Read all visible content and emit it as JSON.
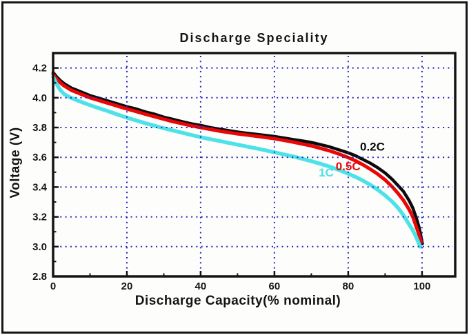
{
  "chart_data": {
    "type": "line",
    "title": "Discharge Speciality",
    "xlabel": "Discharge Capacity(% nominal)",
    "ylabel": "Voltage (V)",
    "xlim": [
      0,
      109
    ],
    "ylim": [
      2.8,
      4.3
    ],
    "axis_color": "#141414",
    "grid": {
      "style": "dotted",
      "color": "#2323bf",
      "x_lines": [
        20,
        40,
        60,
        80,
        100
      ],
      "y_lines": [
        3.0,
        3.2,
        3.4,
        3.6,
        3.8,
        4.0,
        4.2
      ]
    },
    "x_major_ticks": [
      0,
      20,
      40,
      60,
      80,
      100
    ],
    "x_tick_labels": [
      "0",
      "20",
      "40",
      "60",
      "80",
      "100"
    ],
    "x_minor_ticks": [
      10,
      30,
      50,
      70,
      90
    ],
    "y_major_ticks": [
      2.8,
      3.0,
      3.2,
      3.4,
      3.6,
      3.8,
      4.0,
      4.2
    ],
    "y_tick_labels": [
      "2.8",
      "3.0",
      "3.2",
      "3.4",
      "3.6",
      "3.8",
      "4.0",
      "4.2"
    ],
    "y_minor_ticks": [
      2.9,
      3.1,
      3.3,
      3.5,
      3.7,
      3.9,
      4.1
    ],
    "legend_position": "inline-labels",
    "series": [
      {
        "name": "0.2C",
        "color": "#0b0b0b",
        "width": 4.5,
        "label": {
          "text": "0.2C",
          "x": 83.2,
          "v": 3.645
        },
        "points": [
          [
            0,
            4.17
          ],
          [
            0.5,
            4.155
          ],
          [
            1,
            4.14
          ],
          [
            2,
            4.115
          ],
          [
            3,
            4.095
          ],
          [
            4,
            4.08
          ],
          [
            5,
            4.065
          ],
          [
            6,
            4.055
          ],
          [
            8,
            4.035
          ],
          [
            10,
            4.015
          ],
          [
            12,
            4.0
          ],
          [
            14,
            3.985
          ],
          [
            16,
            3.97
          ],
          [
            18,
            3.955
          ],
          [
            20,
            3.94
          ],
          [
            22.5,
            3.925
          ],
          [
            25,
            3.905
          ],
          [
            27.5,
            3.89
          ],
          [
            30,
            3.87
          ],
          [
            32.5,
            3.855
          ],
          [
            35,
            3.84
          ],
          [
            37.5,
            3.825
          ],
          [
            40,
            3.815
          ],
          [
            42.5,
            3.8
          ],
          [
            45,
            3.79
          ],
          [
            47.5,
            3.78
          ],
          [
            50,
            3.77
          ],
          [
            52.5,
            3.762
          ],
          [
            55,
            3.755
          ],
          [
            57.5,
            3.747
          ],
          [
            60,
            3.74
          ],
          [
            62.5,
            3.73
          ],
          [
            65,
            3.72
          ],
          [
            67.5,
            3.71
          ],
          [
            70,
            3.7
          ],
          [
            72.5,
            3.685
          ],
          [
            75,
            3.67
          ],
          [
            77.5,
            3.65
          ],
          [
            80,
            3.63
          ],
          [
            82,
            3.61
          ],
          [
            84,
            3.585
          ],
          [
            86,
            3.56
          ],
          [
            88,
            3.53
          ],
          [
            90,
            3.495
          ],
          [
            92,
            3.45
          ],
          [
            93.5,
            3.41
          ],
          [
            95,
            3.37
          ],
          [
            96.5,
            3.31
          ],
          [
            97.5,
            3.26
          ],
          [
            98.5,
            3.19
          ],
          [
            99.2,
            3.13
          ],
          [
            99.8,
            3.06
          ],
          [
            100.1,
            3.02
          ]
        ]
      },
      {
        "name": "0.5C",
        "color": "#e90707",
        "width": 5,
        "label": {
          "text": "0.5C",
          "x": 76.6,
          "v": 3.514
        },
        "points": [
          [
            0,
            4.16
          ],
          [
            0.5,
            4.14
          ],
          [
            1,
            4.125
          ],
          [
            2,
            4.1
          ],
          [
            3,
            4.08
          ],
          [
            4,
            4.065
          ],
          [
            5,
            4.05
          ],
          [
            6,
            4.04
          ],
          [
            8,
            4.02
          ],
          [
            10,
            4.0
          ],
          [
            12,
            3.985
          ],
          [
            14,
            3.97
          ],
          [
            16,
            3.955
          ],
          [
            18,
            3.94
          ],
          [
            20,
            3.925
          ],
          [
            22.5,
            3.908
          ],
          [
            25,
            3.89
          ],
          [
            27.5,
            3.873
          ],
          [
            30,
            3.856
          ],
          [
            32.5,
            3.84
          ],
          [
            35,
            3.826
          ],
          [
            37.5,
            3.812
          ],
          [
            40,
            3.8
          ],
          [
            42.5,
            3.788
          ],
          [
            45,
            3.777
          ],
          [
            47.5,
            3.767
          ],
          [
            50,
            3.758
          ],
          [
            52.5,
            3.75
          ],
          [
            55,
            3.742
          ],
          [
            57.5,
            3.734
          ],
          [
            60,
            3.725
          ],
          [
            62.5,
            3.714
          ],
          [
            65,
            3.703
          ],
          [
            67.5,
            3.69
          ],
          [
            70,
            3.677
          ],
          [
            72.5,
            3.66
          ],
          [
            75,
            3.643
          ],
          [
            77.5,
            3.622
          ],
          [
            80,
            3.598
          ],
          [
            82,
            3.576
          ],
          [
            84,
            3.55
          ],
          [
            86,
            3.52
          ],
          [
            88,
            3.487
          ],
          [
            90,
            3.448
          ],
          [
            92,
            3.4
          ],
          [
            93.5,
            3.358
          ],
          [
            95,
            3.31
          ],
          [
            96.5,
            3.25
          ],
          [
            97.5,
            3.2
          ],
          [
            98.5,
            3.13
          ],
          [
            99.2,
            3.08
          ],
          [
            99.8,
            3.03
          ]
        ]
      },
      {
        "name": "1C",
        "color": "#4ce2e8",
        "width": 5.5,
        "label": {
          "text": "1C",
          "x": 72.0,
          "v": 3.472
        },
        "points": [
          [
            0,
            4.14
          ],
          [
            0.5,
            4.115
          ],
          [
            1,
            4.09
          ],
          [
            2,
            4.05
          ],
          [
            3,
            4.025
          ],
          [
            4,
            4.01
          ],
          [
            5,
            3.998
          ],
          [
            6,
            3.988
          ],
          [
            8,
            3.968
          ],
          [
            10,
            3.95
          ],
          [
            12,
            3.933
          ],
          [
            14,
            3.917
          ],
          [
            16,
            3.9
          ],
          [
            18,
            3.883
          ],
          [
            20,
            3.866
          ],
          [
            22.5,
            3.847
          ],
          [
            25,
            3.829
          ],
          [
            27.5,
            3.812
          ],
          [
            30,
            3.795
          ],
          [
            32.5,
            3.78
          ],
          [
            35,
            3.765
          ],
          [
            37.5,
            3.75
          ],
          [
            40,
            3.735
          ],
          [
            42.5,
            3.722
          ],
          [
            45,
            3.71
          ],
          [
            47.5,
            3.697
          ],
          [
            50,
            3.685
          ],
          [
            52.5,
            3.672
          ],
          [
            55,
            3.66
          ],
          [
            57.5,
            3.647
          ],
          [
            60,
            3.634
          ],
          [
            62.5,
            3.62
          ],
          [
            65,
            3.606
          ],
          [
            67.5,
            3.59
          ],
          [
            70,
            3.574
          ],
          [
            72.5,
            3.556
          ],
          [
            75,
            3.537
          ],
          [
            77.5,
            3.515
          ],
          [
            80,
            3.49
          ],
          [
            82,
            3.468
          ],
          [
            84,
            3.443
          ],
          [
            86,
            3.415
          ],
          [
            88,
            3.382
          ],
          [
            90,
            3.344
          ],
          [
            92,
            3.3
          ],
          [
            93.5,
            3.26
          ],
          [
            95,
            3.21
          ],
          [
            96.5,
            3.15
          ],
          [
            97.5,
            3.11
          ],
          [
            98.3,
            3.07
          ],
          [
            99,
            3.03
          ],
          [
            99.5,
            3.0
          ]
        ]
      }
    ]
  }
}
